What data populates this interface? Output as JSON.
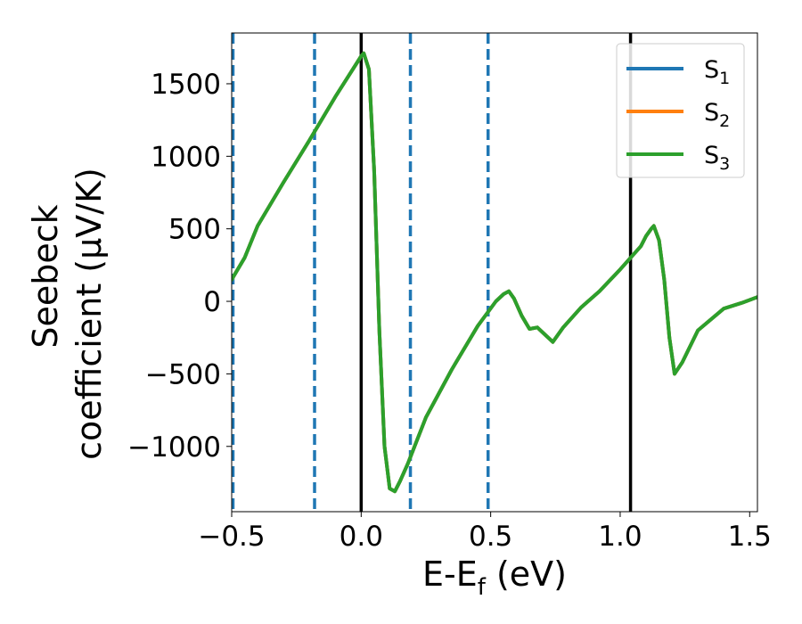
{
  "chart_data": {
    "type": "line",
    "xlabel": "E-E",
    "xlabel_sub": "f",
    "xlabel_unit": " (eV)",
    "ylabel_line1": "Seebeck",
    "ylabel_line2": "coefficient  (μV/K)",
    "xlim": [
      -0.5,
      1.53
    ],
    "ylim": [
      -1450,
      1850
    ],
    "xticks": [
      -0.5,
      0.0,
      0.5,
      1.0,
      1.5
    ],
    "xtick_labels": [
      "−0.5",
      "0.0",
      "0.5",
      "1.0",
      "1.5"
    ],
    "yticks": [
      -1000,
      -500,
      0,
      500,
      1000,
      1500
    ],
    "ytick_labels": [
      "−1000",
      "−500",
      "0",
      "500",
      "1000",
      "1500"
    ],
    "grid": false,
    "legend_position": "top-right",
    "vlines_solid": [
      0.0,
      1.04
    ],
    "vlines_dashed": [
      -0.495,
      -0.18,
      0.19,
      0.49
    ],
    "series": [
      {
        "name": "S",
        "name_sub": "1",
        "color": "#1f77b4",
        "x": [
          -0.5,
          -0.45,
          -0.4,
          -0.3,
          -0.2,
          -0.1,
          0.0,
          0.01,
          0.03,
          0.05,
          0.07,
          0.09,
          0.11,
          0.13,
          0.15,
          0.18,
          0.25,
          0.35,
          0.45,
          0.52,
          0.55,
          0.57,
          0.59,
          0.62,
          0.65,
          0.68,
          0.71,
          0.74,
          0.78,
          0.85,
          0.92,
          1.0,
          1.04,
          1.08,
          1.1,
          1.12,
          1.13,
          1.15,
          1.17,
          1.19,
          1.21,
          1.24,
          1.3,
          1.4,
          1.47,
          1.53
        ],
        "y": [
          150,
          300,
          520,
          820,
          1110,
          1410,
          1690,
          1710,
          1600,
          900,
          -200,
          -1000,
          -1290,
          -1310,
          -1240,
          -1120,
          -800,
          -470,
          -170,
          0,
          50,
          70,
          20,
          -100,
          -190,
          -180,
          -230,
          -280,
          -180,
          -40,
          70,
          220,
          300,
          380,
          450,
          500,
          520,
          420,
          150,
          -250,
          -500,
          -420,
          -200,
          -50,
          -10,
          30
        ]
      },
      {
        "name": "S",
        "name_sub": "2",
        "color": "#ff7f0e",
        "x": [
          -0.5,
          -0.45,
          -0.4,
          -0.3,
          -0.2,
          -0.1,
          0.0,
          0.01,
          0.03,
          0.05,
          0.07,
          0.09,
          0.11,
          0.13,
          0.15,
          0.18,
          0.25,
          0.35,
          0.45,
          0.52,
          0.55,
          0.57,
          0.59,
          0.62,
          0.65,
          0.68,
          0.71,
          0.74,
          0.78,
          0.85,
          0.92,
          1.0,
          1.04,
          1.08,
          1.1,
          1.12,
          1.13,
          1.15,
          1.17,
          1.19,
          1.21,
          1.24,
          1.3,
          1.4,
          1.47,
          1.53
        ],
        "y": [
          150,
          300,
          520,
          820,
          1110,
          1410,
          1690,
          1710,
          1600,
          900,
          -200,
          -1000,
          -1290,
          -1310,
          -1240,
          -1120,
          -800,
          -470,
          -170,
          0,
          50,
          70,
          20,
          -100,
          -190,
          -180,
          -230,
          -280,
          -180,
          -40,
          70,
          220,
          300,
          380,
          450,
          500,
          520,
          420,
          150,
          -250,
          -500,
          -420,
          -200,
          -50,
          -10,
          30
        ]
      },
      {
        "name": "S",
        "name_sub": "3",
        "color": "#2ca02c",
        "x": [
          -0.5,
          -0.45,
          -0.4,
          -0.3,
          -0.2,
          -0.1,
          0.0,
          0.01,
          0.03,
          0.05,
          0.07,
          0.09,
          0.11,
          0.13,
          0.15,
          0.18,
          0.25,
          0.35,
          0.45,
          0.52,
          0.55,
          0.57,
          0.59,
          0.62,
          0.65,
          0.68,
          0.71,
          0.74,
          0.78,
          0.85,
          0.92,
          1.0,
          1.04,
          1.08,
          1.1,
          1.12,
          1.13,
          1.15,
          1.17,
          1.19,
          1.21,
          1.24,
          1.3,
          1.4,
          1.47,
          1.53
        ],
        "y": [
          150,
          300,
          520,
          820,
          1110,
          1410,
          1690,
          1710,
          1600,
          900,
          -200,
          -1000,
          -1290,
          -1310,
          -1240,
          -1120,
          -800,
          -470,
          -170,
          0,
          50,
          70,
          20,
          -100,
          -190,
          -180,
          -230,
          -280,
          -180,
          -40,
          70,
          220,
          300,
          380,
          450,
          500,
          520,
          420,
          150,
          -250,
          -500,
          -420,
          -200,
          -50,
          -10,
          30
        ]
      }
    ]
  }
}
